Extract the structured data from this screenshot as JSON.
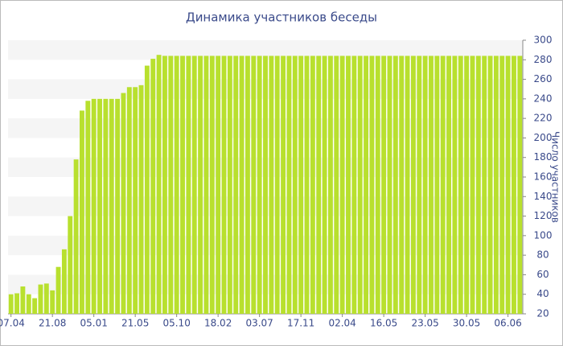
{
  "chart_data": {
    "type": "bar",
    "title": "Динамика участников беседы",
    "y_axis_label": "Число участников",
    "categories": [
      "07.04",
      null,
      null,
      null,
      null,
      null,
      null,
      "21.08",
      null,
      null,
      null,
      null,
      null,
      null,
      "05.01",
      null,
      null,
      null,
      null,
      null,
      null,
      "21.05",
      null,
      null,
      null,
      null,
      null,
      null,
      "05.10",
      null,
      null,
      null,
      null,
      null,
      null,
      "18.02",
      null,
      null,
      null,
      null,
      null,
      null,
      "03.07",
      null,
      null,
      null,
      null,
      null,
      null,
      "17.11",
      null,
      null,
      null,
      null,
      null,
      null,
      "02.04",
      null,
      null,
      null,
      null,
      null,
      null,
      "16.05",
      null,
      null,
      null,
      null,
      null,
      null,
      "23.05",
      null,
      null,
      null,
      null,
      null,
      null,
      "30.05",
      null,
      null,
      null,
      null,
      null,
      null,
      "06.06",
      null,
      null
    ],
    "values": [
      40,
      41,
      48,
      40,
      36,
      50,
      51,
      44,
      68,
      86,
      120,
      178,
      228,
      238,
      240,
      240,
      240,
      240,
      240,
      246,
      252,
      252,
      254,
      274,
      281,
      285,
      284,
      284,
      284,
      284,
      284,
      284,
      284,
      284,
      284,
      284,
      284,
      284,
      284,
      284,
      284,
      284,
      284,
      284,
      284,
      284,
      284,
      284,
      284,
      284,
      284,
      284,
      284,
      284,
      284,
      284,
      284,
      284,
      284,
      284,
      284,
      284,
      284,
      284,
      284,
      284,
      284,
      284,
      284,
      284,
      284,
      284,
      284,
      284,
      284,
      284,
      284,
      284,
      284,
      284,
      284,
      284,
      284,
      284,
      284,
      284,
      284
    ],
    "color": "#b8e02e",
    "ylim": [
      20,
      300
    ],
    "yticks": [
      20,
      40,
      60,
      80,
      100,
      120,
      140,
      160,
      180,
      200,
      220,
      240,
      260,
      280,
      300
    ],
    "grid": true
  }
}
